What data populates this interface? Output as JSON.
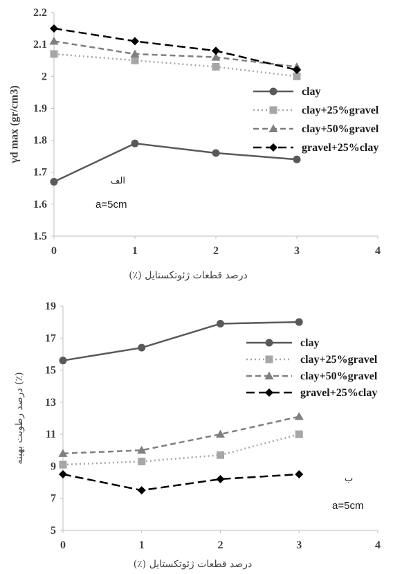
{
  "chart_data": [
    {
      "type": "line",
      "x": [
        0,
        1,
        2,
        3
      ],
      "xlim": [
        0,
        4
      ],
      "ylim": [
        1.5,
        2.2
      ],
      "xticks": [
        "0",
        "1",
        "2",
        "3",
        "4"
      ],
      "yticks": [
        "1.5",
        "1.6",
        "1.7",
        "1.8",
        "1.9",
        "2",
        "2.1",
        "2.2"
      ],
      "xlabel": "درصد قطعات ژئوتکستایل (٪)",
      "ylabel": "γd max (gr/cm3)",
      "grid": false,
      "legend_position": "right",
      "annotations": [
        "الف",
        "a=5cm"
      ],
      "series": [
        {
          "name": "clay",
          "values": [
            1.67,
            1.79,
            1.76,
            1.74
          ],
          "marker": "circle",
          "dash": "solid",
          "color": "#595959"
        },
        {
          "name": "clay+25%gravel",
          "values": [
            2.07,
            2.05,
            2.03,
            2.0
          ],
          "marker": "square",
          "dash": "dot",
          "color": "#a6a6a6"
        },
        {
          "name": "clay+50%gravel",
          "values": [
            2.11,
            2.07,
            2.06,
            2.03
          ],
          "marker": "triangle",
          "dash": "dash",
          "color": "#7f7f7f"
        },
        {
          "name": "gravel+25%clay",
          "values": [
            2.15,
            2.11,
            2.08,
            2.02
          ],
          "marker": "diamond",
          "dash": "longdash",
          "color": "#000000"
        }
      ]
    },
    {
      "type": "line",
      "x": [
        0,
        1,
        2,
        3
      ],
      "xlim": [
        0,
        4
      ],
      "ylim": [
        5,
        19
      ],
      "xticks": [
        "0",
        "1",
        "2",
        "3",
        "4"
      ],
      "yticks": [
        "5",
        "7",
        "9",
        "11",
        "13",
        "15",
        "17",
        "19"
      ],
      "xlabel": "درصد قطعات ژئوتکستایل (٪)",
      "ylabel": "درصد رطوبت بهینه (٪)",
      "grid": false,
      "legend_position": "right",
      "annotations": [
        "ب",
        "a=5cm"
      ],
      "series": [
        {
          "name": "clay",
          "values": [
            15.6,
            16.4,
            17.9,
            18.0
          ],
          "marker": "circle",
          "dash": "solid",
          "color": "#595959"
        },
        {
          "name": "clay+25%gravel",
          "values": [
            9.1,
            9.3,
            9.7,
            11.0
          ],
          "marker": "square",
          "dash": "dot",
          "color": "#a6a6a6"
        },
        {
          "name": "clay+50%gravel",
          "values": [
            9.8,
            10.0,
            11.0,
            12.1
          ],
          "marker": "triangle",
          "dash": "dash",
          "color": "#7f7f7f"
        },
        {
          "name": "gravel+25%clay",
          "values": [
            8.5,
            7.5,
            8.2,
            8.5
          ],
          "marker": "diamond",
          "dash": "longdash",
          "color": "#000000"
        }
      ]
    }
  ]
}
